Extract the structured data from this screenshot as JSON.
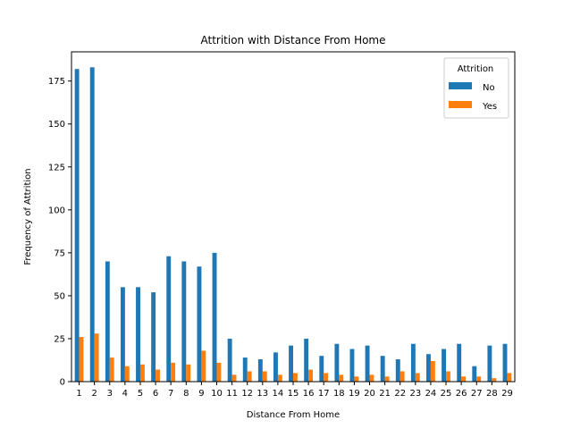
{
  "chart_data": {
    "type": "bar",
    "title": "Attrition with Distance From Home",
    "xlabel": "Distance From Home",
    "ylabel": "Frequency of Attrition",
    "categories": [
      "1",
      "2",
      "3",
      "4",
      "5",
      "6",
      "7",
      "8",
      "9",
      "10",
      "11",
      "12",
      "13",
      "14",
      "15",
      "16",
      "17",
      "18",
      "19",
      "20",
      "21",
      "22",
      "23",
      "24",
      "25",
      "26",
      "27",
      "28",
      "29"
    ],
    "series": [
      {
        "name": "No",
        "color": "#1f77b4",
        "values": [
          182,
          183,
          70,
          55,
          55,
          52,
          73,
          70,
          67,
          75,
          25,
          14,
          13,
          17,
          21,
          25,
          15,
          22,
          19,
          21,
          15,
          13,
          22,
          16,
          19,
          22,
          9,
          21,
          22
        ]
      },
      {
        "name": "Yes",
        "color": "#ff7f0e",
        "values": [
          26,
          28,
          14,
          9,
          10,
          7,
          11,
          10,
          18,
          11,
          4,
          6,
          6,
          4,
          5,
          7,
          5,
          4,
          3,
          4,
          3,
          6,
          5,
          12,
          6,
          3,
          3,
          2,
          5
        ]
      }
    ],
    "ylim": [
      0,
      192
    ],
    "yticks": [
      0,
      25,
      50,
      75,
      100,
      125,
      150,
      175
    ],
    "legend": {
      "title": "Attrition",
      "position": "top-right"
    },
    "grid": false
  }
}
